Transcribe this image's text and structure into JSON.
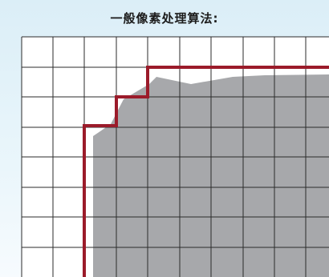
{
  "title": "一般像素处理算法:",
  "colors": {
    "grid_line": "#2b2b2b",
    "shape_fill": "#a7a8ab",
    "outline": "#9b1b2a",
    "background": "#ffffff"
  }
}
